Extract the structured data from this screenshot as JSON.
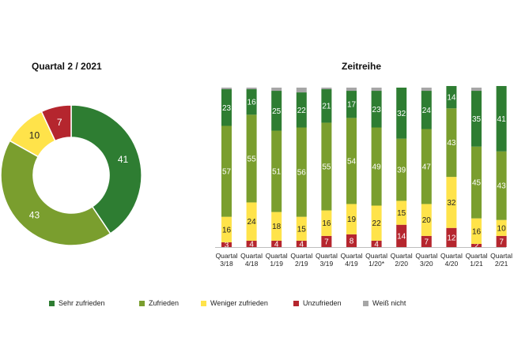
{
  "colors": {
    "sehr_zufrieden": "#2e7d32",
    "zufrieden": "#7a9e2e",
    "weniger_zufrieden": "#ffe34a",
    "unzufrieden": "#b5262e",
    "weiss_nicht": "#a6a6a6"
  },
  "chart_data": [
    {
      "type": "pie",
      "title": "Quartal 2 / 2021",
      "donut": true,
      "slices": [
        {
          "name": "Sehr zufrieden",
          "value": 41,
          "color_key": "sehr_zufrieden"
        },
        {
          "name": "Zufrieden",
          "value": 43,
          "color_key": "zufrieden"
        },
        {
          "name": "Weniger zufrieden",
          "value": 10,
          "color_key": "weniger_zufrieden"
        },
        {
          "name": "Unzufrieden",
          "value": 7,
          "color_key": "unzufrieden"
        }
      ]
    },
    {
      "type": "bar",
      "stacked": true,
      "title": "Zeitreihe",
      "categories": [
        [
          "Quartal",
          "3/18"
        ],
        [
          "Quartal",
          "4/18"
        ],
        [
          "Quartal",
          "1/19"
        ],
        [
          "Quartal",
          "2/19"
        ],
        [
          "Quartal",
          "3/19"
        ],
        [
          "Quartal",
          "4/19"
        ],
        [
          "Quartal",
          "1/20*"
        ],
        [
          "Quartal",
          "2/20"
        ],
        [
          "Quartal",
          "3/20"
        ],
        [
          "Quartal",
          "4/20"
        ],
        [
          "Quartal",
          "1/21"
        ],
        [
          "Quartal",
          "2/21"
        ]
      ],
      "ylim": [
        0,
        100
      ],
      "series": [
        {
          "name": "Unzufrieden",
          "color_key": "unzufrieden",
          "values": [
            3,
            4,
            4,
            4,
            7,
            8,
            4,
            14,
            7,
            12,
            2,
            7
          ]
        },
        {
          "name": "Weniger zufrieden",
          "color_key": "weniger_zufrieden",
          "values": [
            16,
            24,
            18,
            15,
            16,
            19,
            22,
            15,
            20,
            32,
            16,
            10
          ]
        },
        {
          "name": "Zufrieden",
          "color_key": "zufrieden",
          "values": [
            57,
            55,
            51,
            56,
            55,
            54,
            49,
            39,
            47,
            43,
            45,
            43
          ]
        },
        {
          "name": "Sehr zufrieden",
          "color_key": "sehr_zufrieden",
          "values": [
            23,
            16,
            25,
            22,
            21,
            17,
            23,
            32,
            24,
            14,
            35,
            41
          ]
        },
        {
          "name": "Weiß nicht",
          "color_key": "weiss_nicht",
          "values": [
            1,
            1,
            2,
            3,
            1,
            2,
            2,
            0,
            2,
            0,
            2,
            0
          ]
        }
      ]
    }
  ],
  "legend": [
    {
      "label": "Sehr zufrieden",
      "color_key": "sehr_zufrieden"
    },
    {
      "label": "Zufrieden",
      "color_key": "zufrieden"
    },
    {
      "label": "Weniger zufrieden",
      "color_key": "weniger_zufrieden"
    },
    {
      "label": "Unzufrieden",
      "color_key": "unzufrieden"
    },
    {
      "label": "Weiß nicht",
      "color_key": "weiss_nicht"
    }
  ]
}
